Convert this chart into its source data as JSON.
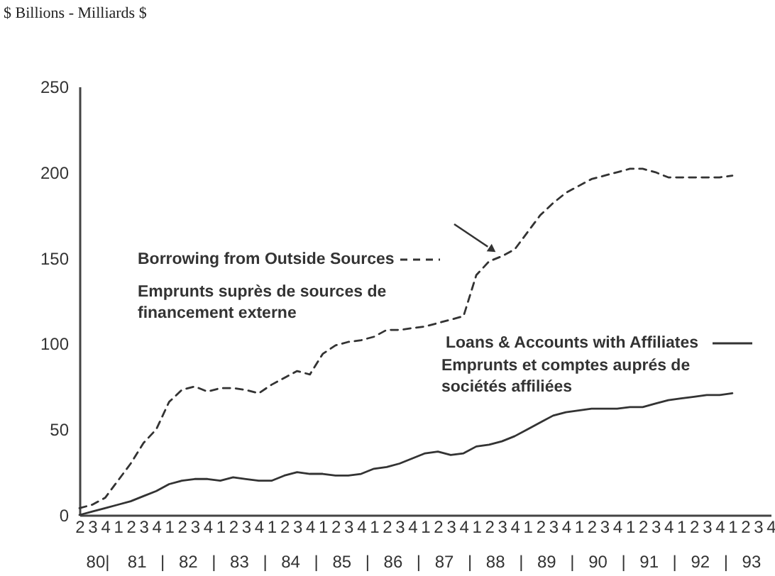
{
  "chart_data": {
    "type": "line",
    "ylabel": "$ Billions - Milliards $",
    "categories": [
      "2",
      "3",
      "4",
      "1",
      "2",
      "3",
      "4",
      "1",
      "2",
      "3",
      "4",
      "1",
      "2",
      "3",
      "4",
      "1",
      "2",
      "3",
      "4",
      "1",
      "2",
      "3",
      "4",
      "1",
      "2",
      "3",
      "4",
      "1",
      "2",
      "3",
      "4",
      "1",
      "2",
      "3",
      "4",
      "1",
      "2",
      "3",
      "4",
      "1",
      "2",
      "3",
      "4",
      "1",
      "2",
      "3",
      "4",
      "1",
      "2",
      "3",
      "4",
      "1",
      "2",
      "3",
      "4"
    ],
    "series": [
      {
        "name": "Borrowing from Outside Sources",
        "color": "#333333",
        "line_style": "dashed",
        "values": [
          4,
          6,
          10,
          20,
          30,
          42,
          50,
          66,
          73,
          75,
          72,
          74,
          74,
          73,
          71,
          76,
          80,
          84,
          82,
          94,
          99,
          101,
          102,
          104,
          108,
          108,
          109,
          110,
          112,
          114,
          116,
          140,
          148,
          151,
          155,
          165,
          175,
          182,
          188,
          192,
          196,
          198,
          200,
          202,
          202,
          200,
          197,
          197,
          197,
          197,
          197,
          198,
          null,
          null,
          null
        ]
      },
      {
        "name": "Loans & Accounts with Affiliates",
        "color": "#333333",
        "line_style": "solid",
        "values": [
          0,
          2,
          4,
          6,
          8,
          11,
          14,
          18,
          20,
          21,
          21,
          20,
          22,
          21,
          20,
          20,
          23,
          25,
          24,
          24,
          23,
          23,
          24,
          27,
          28,
          30,
          33,
          36,
          37,
          35,
          36,
          40,
          41,
          43,
          46,
          50,
          54,
          58,
          60,
          61,
          62,
          62,
          62,
          63,
          63,
          65,
          67,
          68,
          69,
          70,
          70,
          71,
          null,
          null,
          null
        ]
      }
    ],
    "legend": "left",
    "annotations": [
      "Emprunts suprès de sources de\nfinancement externe",
      "Emprunts et comptes auprés de\nsociétés affiliées",
      "80| 81 | 82 | 83 | 84 | 85 | 86 | 87 | 88 | 89 | 90 | 91 | 92 | 93"
    ],
    "ylim": [
      0,
      250
    ],
    "yticks": [
      0,
      50,
      100,
      150,
      200,
      250
    ],
    "grid": false
  }
}
